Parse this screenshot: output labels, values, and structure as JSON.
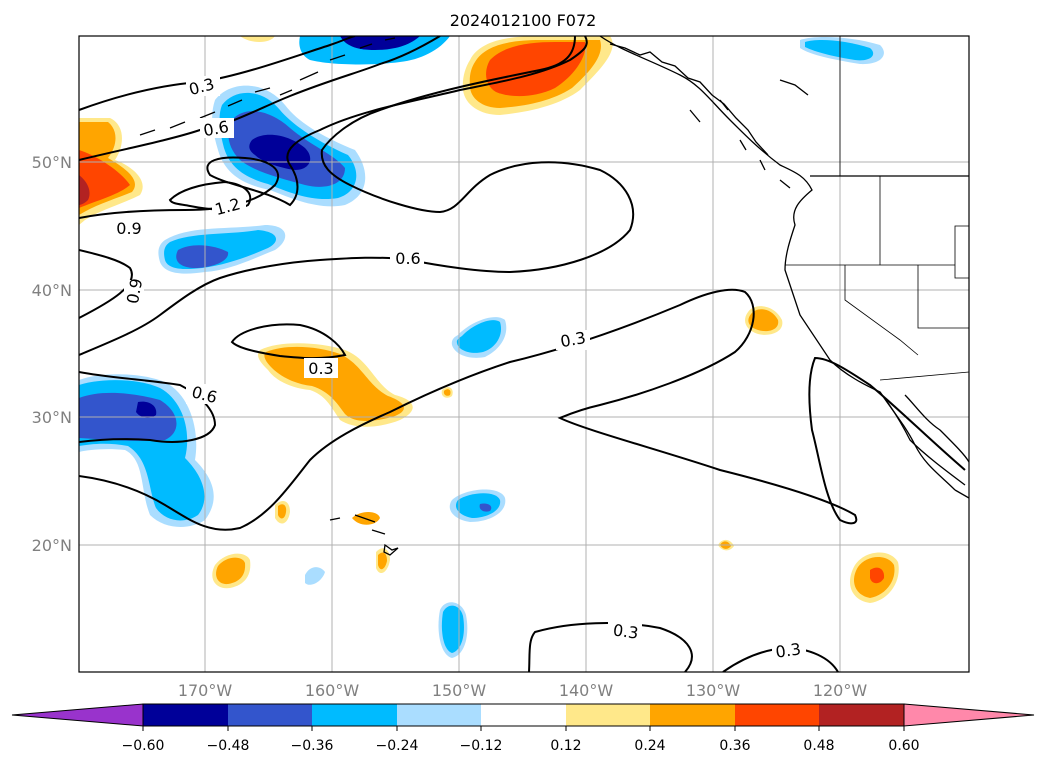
{
  "title": "2024012100 F072",
  "map": {
    "lat_labels": [
      "50°N",
      "40°N",
      "30°N",
      "20°N"
    ],
    "lon_labels": [
      "170°W",
      "160°W",
      "150°W",
      "140°W",
      "130°W",
      "120°W"
    ],
    "contour_labels": [
      "0.3",
      "0.6",
      "1.2",
      "0.9",
      "0.6",
      "0.9",
      "0.3",
      "0.3",
      "0.6",
      "0.3",
      "0.3"
    ],
    "gridlines": true,
    "colors": {
      "purple": "#9933cc",
      "navy": "#000099",
      "blue": "#3355cc",
      "cyan": "#00bbff",
      "lightblue": "#aaddff",
      "white": "#ffffff",
      "lightyellow": "#ffe88a",
      "orange": "#ffa500",
      "redorange": "#ff4500",
      "darkred": "#b22222",
      "pink": "#ff88aa"
    }
  },
  "colorbar": {
    "ticks": [
      "−0.60",
      "−0.48",
      "−0.36",
      "−0.24",
      "−0.12",
      "0.12",
      "0.24",
      "0.36",
      "0.48",
      "0.60"
    ],
    "bins": [
      "purple",
      "navy",
      "blue",
      "cyan",
      "lightblue",
      "white",
      "lightyellow",
      "orange",
      "redorange",
      "darkred",
      "pink"
    ]
  }
}
